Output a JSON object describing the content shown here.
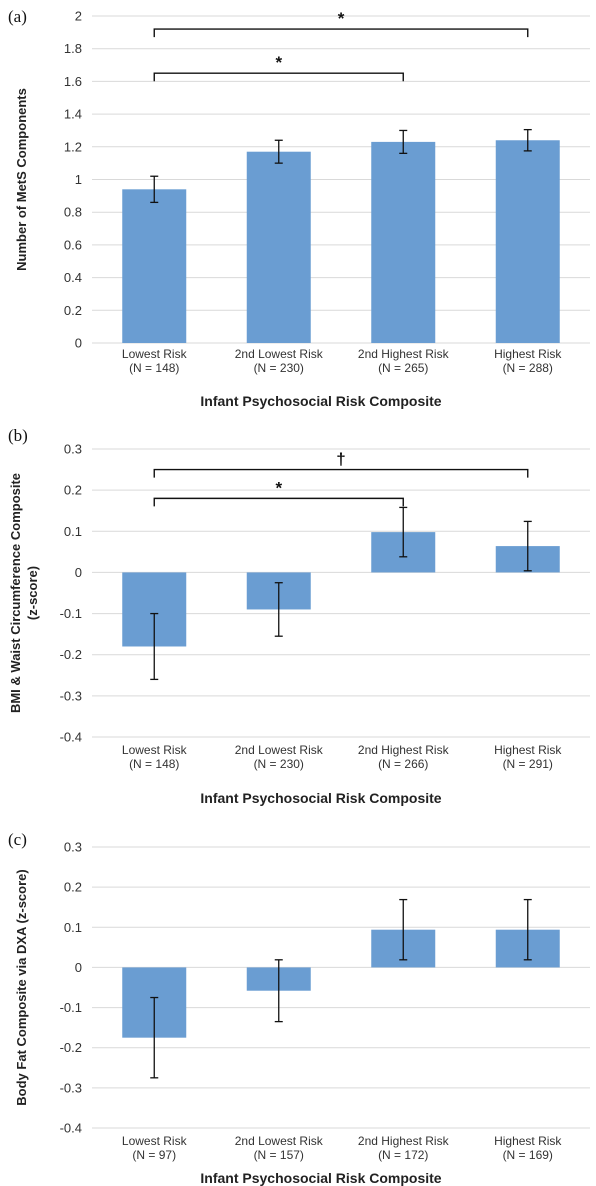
{
  "chart_data": [
    {
      "type": "bar",
      "panel_label": "(a)",
      "ylabel": "Number of MetS Components",
      "xlabel": "Infant Psychosocial Risk Composite",
      "categories": [
        "Lowest Risk",
        "2nd Lowest Risk",
        "2nd Highest Risk",
        "Highest Risk"
      ],
      "n_labels": [
        "(N = 148)",
        "(N = 230)",
        "(N = 265)",
        "(N = 288)"
      ],
      "values": [
        0.94,
        1.17,
        1.23,
        1.24
      ],
      "errors": [
        0.08,
        0.07,
        0.07,
        0.065
      ],
      "ylim": [
        0,
        2
      ],
      "yticks": [
        "0",
        "0.2",
        "0.4",
        "0.6",
        "0.8",
        "1",
        "1.2",
        "1.4",
        "1.6",
        "1.8",
        "2"
      ],
      "grid": true,
      "bar_color": "#6a9dd2",
      "significance": [
        {
          "from": 0,
          "to": 3,
          "symbol": "*",
          "y": 1.92
        },
        {
          "from": 0,
          "to": 2,
          "symbol": "*",
          "y": 1.65
        }
      ]
    },
    {
      "type": "bar",
      "panel_label": "(b)",
      "ylabel": "BMI & Waist Circumference Composite (z-score)",
      "xlabel": "Infant Psychosocial Risk Composite",
      "categories": [
        "Lowest Risk",
        "2nd Lowest Risk",
        "2nd Highest Risk",
        "Highest Risk"
      ],
      "n_labels": [
        "(N = 148)",
        "(N = 230)",
        "(N = 266)",
        "(N = 291)"
      ],
      "values": [
        -0.18,
        -0.09,
        0.098,
        0.064
      ],
      "errors": [
        0.08,
        0.065,
        0.06,
        0.06
      ],
      "ylim": [
        -0.4,
        0.3
      ],
      "yticks": [
        "-0.4",
        "-0.3",
        "-0.2",
        "-0.1",
        "0",
        "0.1",
        "0.2",
        "0.3"
      ],
      "grid": true,
      "bar_color": "#6a9dd2",
      "significance": [
        {
          "from": 0,
          "to": 3,
          "symbol": "†",
          "y": 0.25
        },
        {
          "from": 0,
          "to": 2,
          "symbol": "*",
          "y": 0.18
        }
      ]
    },
    {
      "type": "bar",
      "panel_label": "(c)",
      "ylabel": "Body Fat Composite via DXA (z-score)",
      "xlabel": "Infant Psychosocial Risk Composite",
      "categories": [
        "Lowest Risk",
        "2nd Lowest Risk",
        "2nd Highest Risk",
        "Highest Risk"
      ],
      "n_labels": [
        "(N = 97)",
        "(N = 157)",
        "(N = 172)",
        "(N = 169)"
      ],
      "values": [
        -0.175,
        -0.058,
        0.094,
        0.094
      ],
      "errors": [
        0.1,
        0.077,
        0.075,
        0.075
      ],
      "ylim": [
        -0.4,
        0.3
      ],
      "yticks": [
        "-0.4",
        "-0.3",
        "-0.2",
        "-0.1",
        "0",
        "0.1",
        "0.2",
        "0.3"
      ],
      "grid": true,
      "bar_color": "#6a9dd2",
      "significance": []
    }
  ]
}
